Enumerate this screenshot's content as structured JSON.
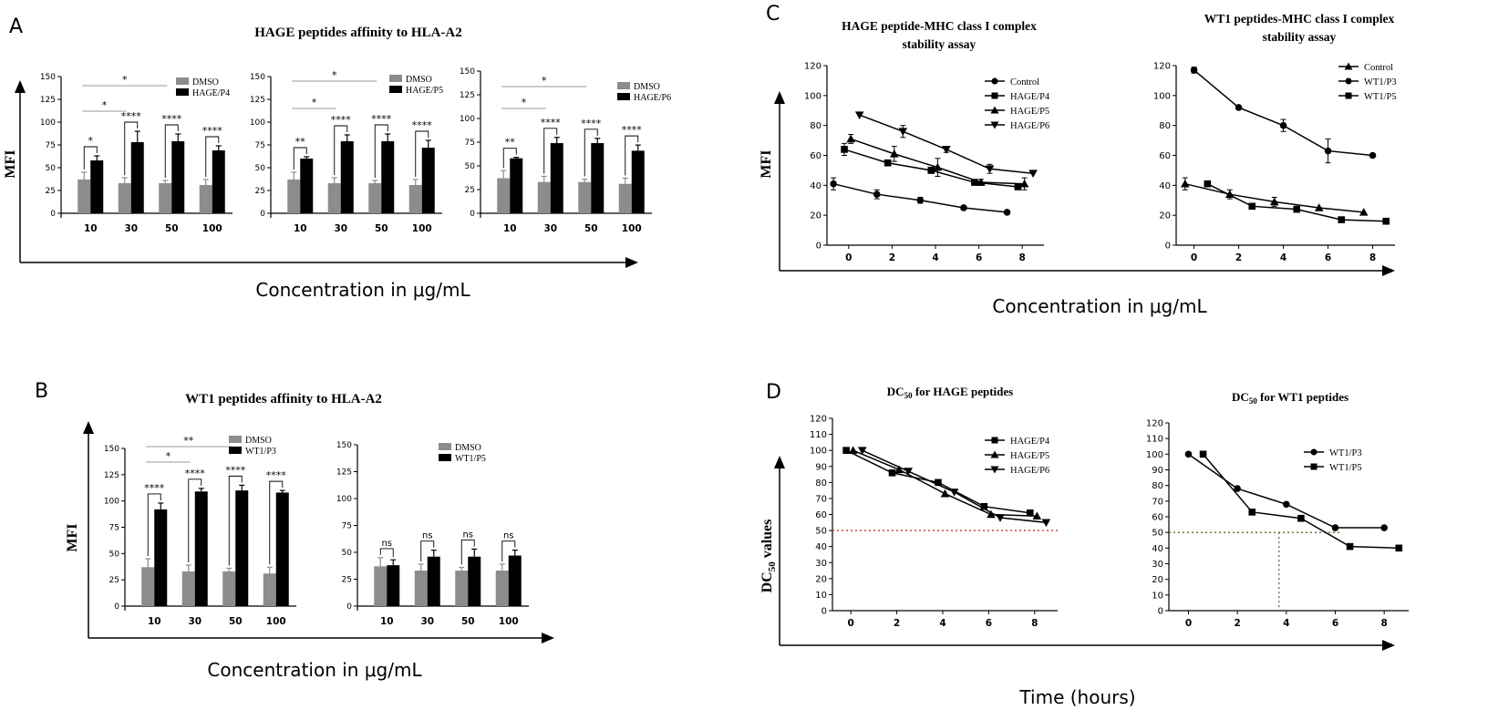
{
  "panels": {
    "A": {
      "letter": "A",
      "title": "HAGE peptides affinity to HLA-A2",
      "ylabel": "MFI",
      "xlabel": "Concentration in μg/mL"
    },
    "B": {
      "letter": "B",
      "title": "WT1 peptides affinity to HLA-A2",
      "ylabel": "MFI",
      "xlabel": "Concentration in μg/mL"
    },
    "C": {
      "letter": "C",
      "ylabel": "MFI",
      "xlabel": "Concentration in μg/mL"
    },
    "D": {
      "letter": "D",
      "ylabel_main": "DC",
      "ylabel_sub": "50",
      "ylabel_rest": " values",
      "xlabel": "Time (hours)"
    }
  },
  "colors": {
    "dmso": "#8c8c8c",
    "peptide": "#000000",
    "threshold_red": "#c0392b",
    "threshold_olive": "#556b2f"
  },
  "chart_data": [
    {
      "id": "A1",
      "type": "bar",
      "categories": [
        "10",
        "30",
        "50",
        "100"
      ],
      "ylim": [
        0,
        150
      ],
      "yticks": [
        0,
        25,
        50,
        75,
        100,
        125,
        150
      ],
      "series": [
        {
          "name": "DMSO",
          "values": [
            37,
            33,
            33,
            31
          ],
          "err": [
            8,
            6,
            3,
            6
          ]
        },
        {
          "name": "HAGE/P4",
          "values": [
            58,
            78,
            79,
            69
          ],
          "err": [
            5,
            12,
            8,
            5
          ]
        }
      ],
      "pair_sig": [
        "*",
        "****",
        "****",
        "****"
      ],
      "brackets": [
        {
          "from": 0,
          "to": 2,
          "label": "*"
        },
        {
          "from": 0,
          "to": 1,
          "label": "*"
        }
      ]
    },
    {
      "id": "A2",
      "type": "bar",
      "categories": [
        "10",
        "30",
        "50",
        "100"
      ],
      "ylim": [
        0,
        150
      ],
      "yticks": [
        0,
        25,
        50,
        75,
        100,
        125,
        150
      ],
      "series": [
        {
          "name": "DMSO",
          "values": [
            37,
            33,
            33,
            31
          ],
          "err": [
            8,
            6,
            3,
            6
          ]
        },
        {
          "name": "HAGE/P5",
          "values": [
            60,
            79,
            79,
            72
          ],
          "err": [
            2,
            7,
            8,
            8
          ]
        }
      ],
      "pair_sig": [
        "**",
        "****",
        "****",
        "****"
      ],
      "brackets": [
        {
          "from": 0,
          "to": 2,
          "label": "*"
        },
        {
          "from": 0,
          "to": 1,
          "label": "*"
        }
      ]
    },
    {
      "id": "A3",
      "type": "bar",
      "categories": [
        "10",
        "30",
        "50",
        "100"
      ],
      "ylim": [
        0,
        150
      ],
      "yticks": [
        0,
        25,
        50,
        75,
        100,
        125,
        150
      ],
      "series": [
        {
          "name": "DMSO",
          "values": [
            37,
            33,
            33,
            31
          ],
          "err": [
            8,
            6,
            3,
            6
          ]
        },
        {
          "name": "HAGE/P6",
          "values": [
            58,
            74,
            74,
            66
          ],
          "err": [
            1,
            6,
            5,
            6
          ]
        }
      ],
      "pair_sig": [
        "**",
        "****",
        "****",
        "****"
      ],
      "brackets": [
        {
          "from": 0,
          "to": 2,
          "label": "*"
        },
        {
          "from": 0,
          "to": 1,
          "label": "*"
        }
      ]
    },
    {
      "id": "B1",
      "type": "bar",
      "categories": [
        "10",
        "30",
        "50",
        "100"
      ],
      "ylim": [
        0,
        150
      ],
      "yticks": [
        0,
        25,
        50,
        75,
        100,
        125,
        150
      ],
      "series": [
        {
          "name": "DMSO",
          "values": [
            37,
            33,
            33,
            31
          ],
          "err": [
            8,
            6,
            3,
            6
          ]
        },
        {
          "name": "WT1/P3",
          "values": [
            92,
            109,
            110,
            108
          ],
          "err": [
            6,
            3,
            5,
            2
          ]
        }
      ],
      "pair_sig": [
        "****",
        "****",
        "****",
        "****"
      ],
      "brackets": [
        {
          "from": 0,
          "to": 2,
          "label": "**"
        },
        {
          "from": 0,
          "to": 1,
          "label": "*"
        }
      ]
    },
    {
      "id": "B2",
      "type": "bar",
      "categories": [
        "10",
        "30",
        "50",
        "100"
      ],
      "ylim": [
        0,
        150
      ],
      "yticks": [
        0,
        25,
        50,
        75,
        100,
        125,
        150
      ],
      "series": [
        {
          "name": "DMSO",
          "values": [
            37,
            33,
            33,
            33
          ],
          "err": [
            8,
            6,
            3,
            6
          ]
        },
        {
          "name": "WT1/P5",
          "values": [
            38,
            46,
            46,
            47
          ],
          "err": [
            5,
            6,
            7,
            5
          ]
        }
      ],
      "pair_sig": [
        "ns",
        "ns",
        "ns",
        "ns"
      ],
      "brackets": []
    },
    {
      "id": "C1",
      "type": "line",
      "title": "HAGE peptide-MHC class I complex stability assay",
      "xlim": [
        -1,
        9
      ],
      "xticks": [
        0,
        2,
        4,
        6,
        8
      ],
      "ylim": [
        0,
        120
      ],
      "yticks": [
        0,
        20,
        40,
        60,
        80,
        100,
        120
      ],
      "series": [
        {
          "name": "Control",
          "marker": "circle",
          "x": [
            -0.7,
            1.3,
            3.3,
            5.3,
            7.3
          ],
          "y": [
            41,
            34,
            30,
            25,
            22
          ],
          "err": [
            4,
            3,
            2,
            0,
            0
          ]
        },
        {
          "name": "HAGE/P4",
          "marker": "square",
          "x": [
            -0.2,
            1.8,
            3.8,
            5.8,
            7.8
          ],
          "y": [
            64,
            55,
            50,
            42,
            39
          ],
          "err": [
            4,
            0,
            2,
            0,
            0
          ]
        },
        {
          "name": "HAGE/P5",
          "marker": "triangle-up",
          "x": [
            0.1,
            2.1,
            4.1,
            6.1,
            8.1
          ],
          "y": [
            71,
            61,
            52,
            42,
            41
          ],
          "err": [
            3,
            5,
            6,
            2,
            4
          ]
        },
        {
          "name": "HAGE/P6",
          "marker": "triangle-down",
          "x": [
            0.5,
            2.5,
            4.5,
            6.5,
            8.5
          ],
          "y": [
            87,
            76,
            64,
            51,
            48
          ],
          "err": [
            0,
            4,
            2,
            3,
            0
          ]
        }
      ]
    },
    {
      "id": "C2",
      "type": "line",
      "title": "WT1 peptides-MHC class I complex stability assay",
      "xlim": [
        -0.8,
        9
      ],
      "xticks": [
        0,
        2,
        4,
        6,
        8
      ],
      "ylim": [
        0,
        120
      ],
      "yticks": [
        0,
        20,
        40,
        60,
        80,
        100,
        120
      ],
      "series": [
        {
          "name": "Control",
          "marker": "triangle-up",
          "x": [
            -0.4,
            1.6,
            3.6,
            5.6,
            7.6
          ],
          "y": [
            41,
            34,
            29,
            25,
            22
          ],
          "err": [
            4,
            3,
            3,
            0,
            0
          ]
        },
        {
          "name": "WT1/P3",
          "marker": "circle",
          "x": [
            0,
            2,
            4,
            6,
            8
          ],
          "y": [
            117,
            92,
            80,
            63,
            60
          ],
          "err": [
            2,
            0,
            4,
            8,
            0
          ]
        },
        {
          "name": "WT1/P5",
          "marker": "square",
          "x": [
            0.6,
            2.6,
            4.6,
            6.6,
            8.6
          ],
          "y": [
            41,
            26,
            24,
            17,
            16
          ],
          "err": [
            0,
            0,
            0,
            0,
            0
          ]
        }
      ]
    },
    {
      "id": "D1",
      "type": "line",
      "title_main": "DC",
      "title_sub": "50",
      "title_rest": " for HAGE peptides",
      "xlim": [
        -0.8,
        9
      ],
      "xticks": [
        0,
        2,
        4,
        6,
        8
      ],
      "ylim": [
        0,
        120
      ],
      "yticks": [
        0,
        10,
        20,
        30,
        40,
        50,
        60,
        70,
        80,
        90,
        100,
        110,
        120
      ],
      "threshold": 50,
      "series": [
        {
          "name": "HAGE/P4",
          "marker": "square",
          "x": [
            -0.2,
            1.8,
            3.8,
            5.8,
            7.8
          ],
          "y": [
            100,
            86,
            80,
            65,
            61
          ]
        },
        {
          "name": "HAGE/P5",
          "marker": "triangle-up",
          "x": [
            0.1,
            2.1,
            4.1,
            6.1,
            8.1
          ],
          "y": [
            100,
            88,
            73,
            60,
            59
          ]
        },
        {
          "name": "HAGE/P6",
          "marker": "triangle-down",
          "x": [
            0.5,
            2.5,
            4.5,
            6.5,
            8.5
          ],
          "y": [
            100,
            87,
            74,
            58,
            55
          ]
        }
      ]
    },
    {
      "id": "D2",
      "type": "line",
      "title_main": "DC",
      "title_sub": "50",
      "title_rest": " for WT1 peptides",
      "xlim": [
        -0.8,
        9
      ],
      "xticks": [
        0,
        2,
        4,
        6,
        8
      ],
      "ylim": [
        0,
        120
      ],
      "yticks": [
        0,
        10,
        20,
        30,
        40,
        50,
        60,
        70,
        80,
        90,
        100,
        110,
        120
      ],
      "threshold": 50,
      "threshold_x": 3.7,
      "series": [
        {
          "name": "WT1/P3",
          "marker": "circle",
          "x": [
            0,
            2,
            4,
            6,
            8
          ],
          "y": [
            100,
            78,
            68,
            53,
            53
          ]
        },
        {
          "name": "WT1/P5",
          "marker": "square",
          "x": [
            0.6,
            2.6,
            4.6,
            6.6,
            8.6
          ],
          "y": [
            100,
            63,
            59,
            41,
            40
          ]
        }
      ]
    }
  ]
}
